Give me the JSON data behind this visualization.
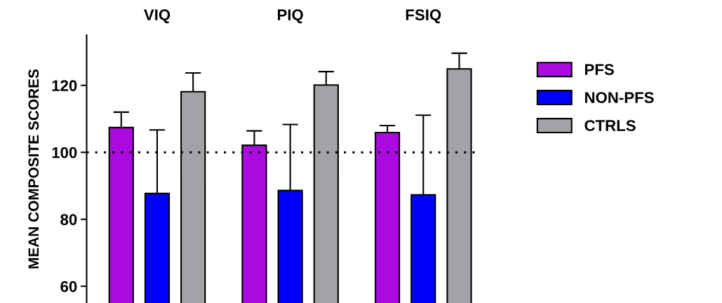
{
  "chart_data": {
    "type": "bar",
    "ylabel": "MEAN COMPOSITE SCORES",
    "categories": [
      "VIQ",
      "PIQ",
      "FSIQ"
    ],
    "series": [
      {
        "name": "PFS",
        "color": "#ab0ae0",
        "values": [
          107.4,
          102.1,
          105.9
        ],
        "errors": [
          4.6,
          4.3,
          2.1
        ]
      },
      {
        "name": "NON-PFS",
        "color": "#0000ff",
        "values": [
          87.7,
          88.6,
          87.3
        ],
        "errors": [
          19.0,
          19.7,
          23.8
        ]
      },
      {
        "name": "CTRLS",
        "color": "#a3a2a7",
        "values": [
          118.1,
          120.1,
          124.9
        ],
        "errors": [
          5.6,
          4.0,
          4.7
        ]
      }
    ],
    "ylim": [
      55,
      135
    ],
    "yticks": [
      60,
      80,
      100,
      120
    ],
    "ref_lines": [
      {
        "axis": "y",
        "value": 100,
        "color": "#000000",
        "line_style": "dotted"
      }
    ],
    "grid": false,
    "legend": "top right"
  }
}
